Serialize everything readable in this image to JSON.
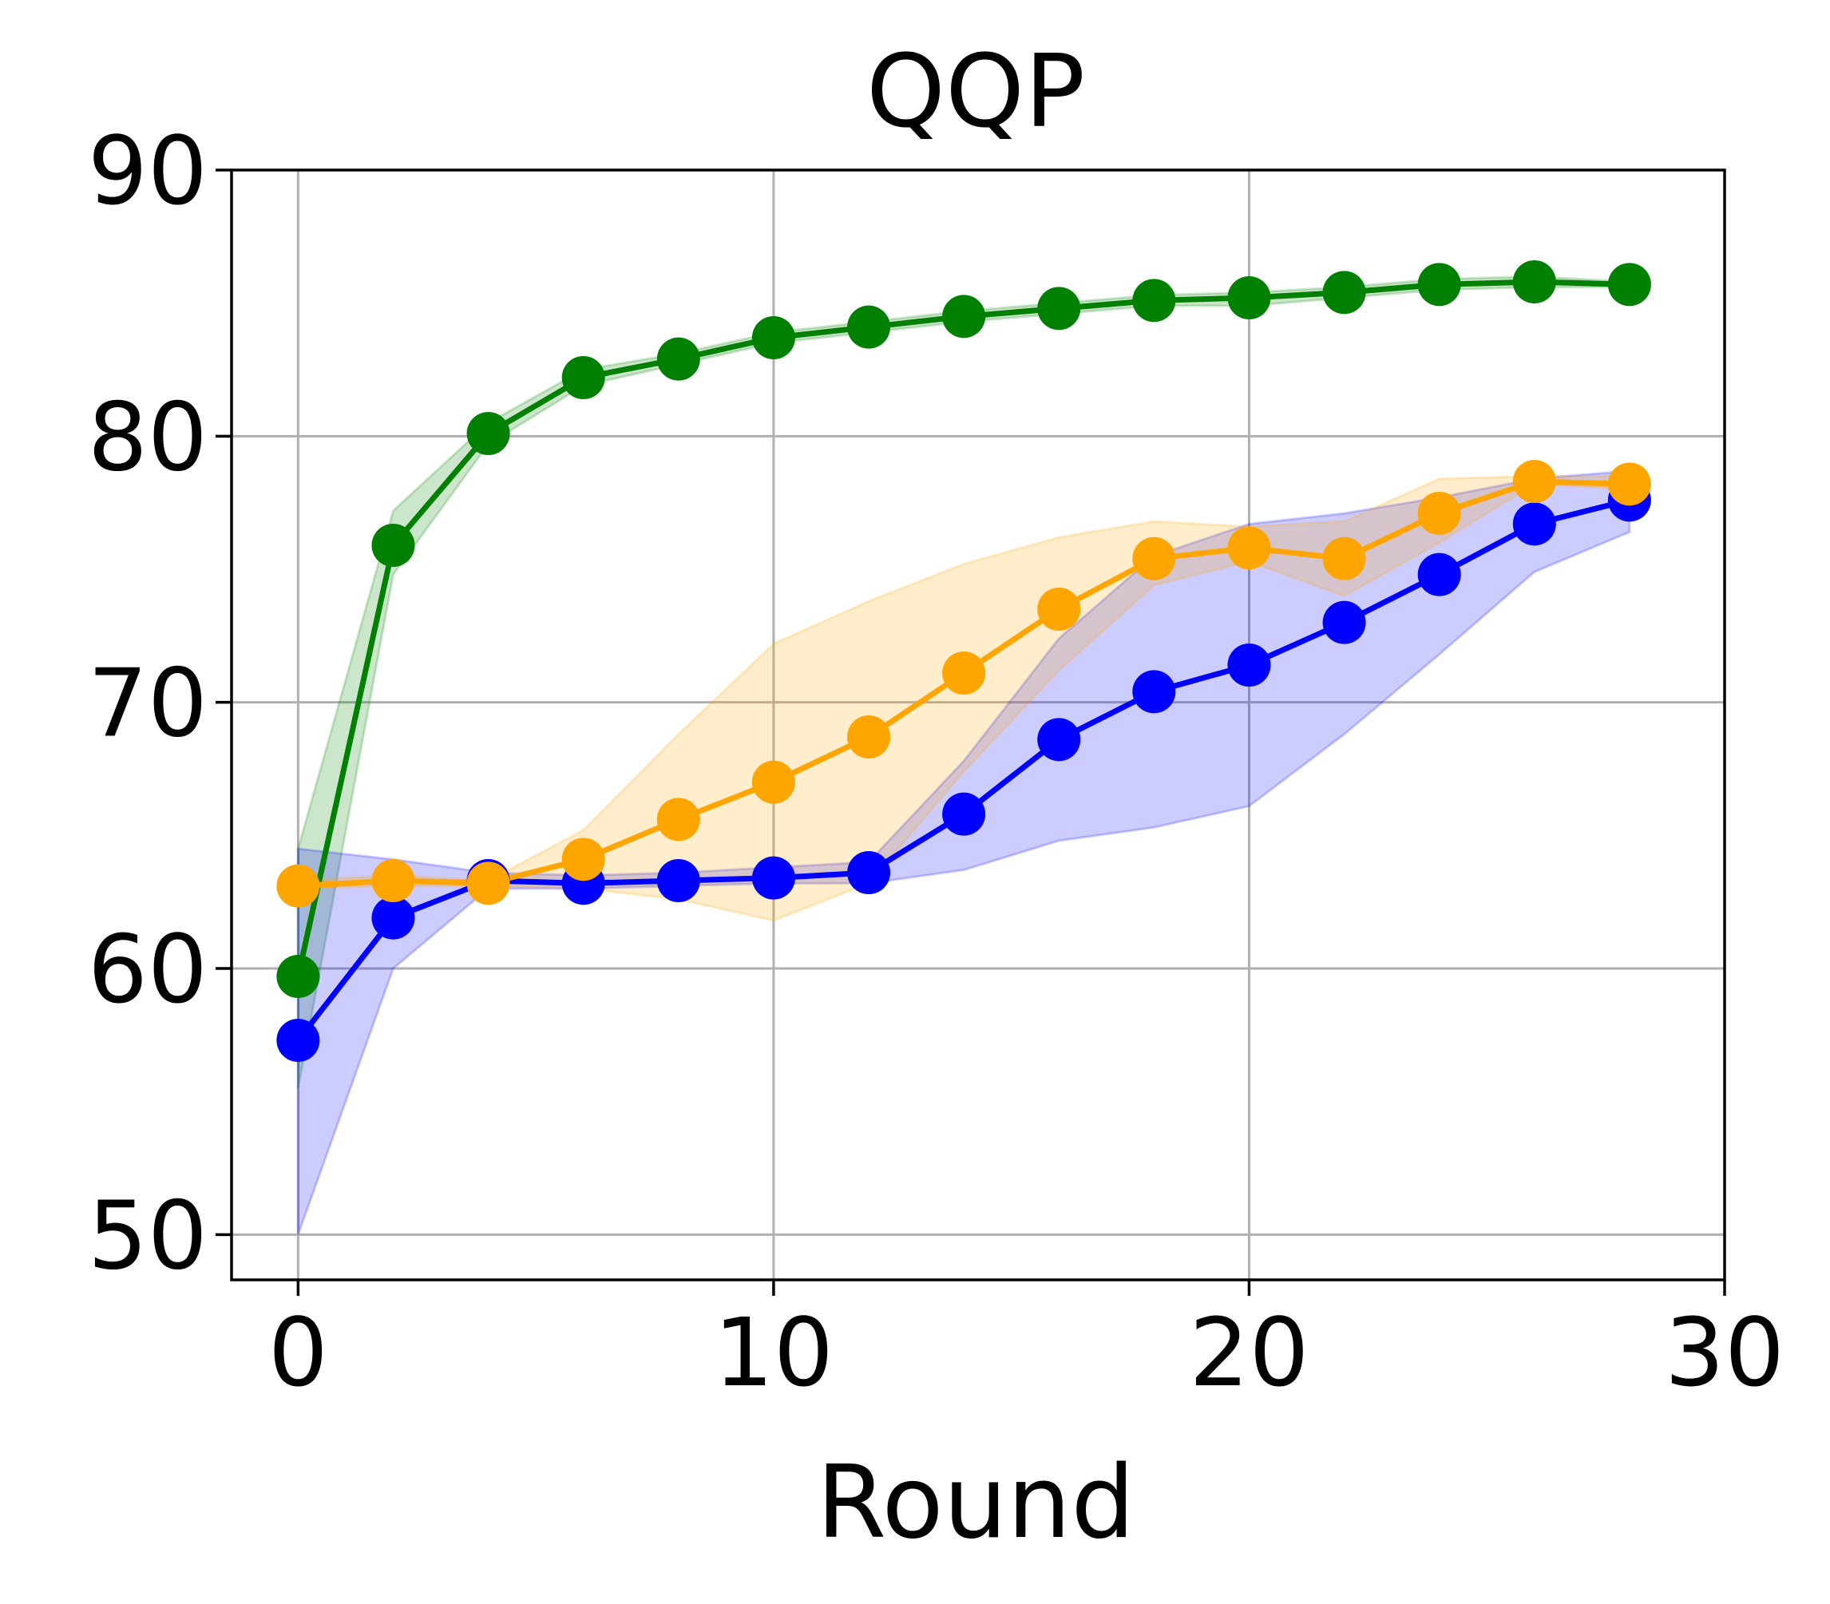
{
  "chart_data": {
    "type": "line",
    "title": "QQP",
    "xlabel": "Round",
    "ylabel": "",
    "xlim": [
      -1.4,
      30
    ],
    "ylim": [
      48.3,
      90
    ],
    "xticks": [
      0,
      10,
      20,
      30
    ],
    "yticks": [
      50,
      60,
      70,
      80,
      90
    ],
    "grid": true,
    "legend": "none",
    "x": [
      0,
      2,
      4,
      6,
      8,
      10,
      12,
      14,
      16,
      18,
      20,
      22,
      24,
      26,
      28
    ],
    "series": [
      {
        "color": "#008000",
        "values": [
          59.7,
          75.9,
          80.1,
          82.2,
          82.9,
          83.7,
          84.1,
          84.5,
          84.8,
          85.1,
          85.2,
          85.4,
          85.7,
          85.8,
          85.7
        ],
        "lower": [
          55.5,
          74.8,
          79.7,
          81.9,
          82.7,
          83.5,
          83.9,
          84.3,
          84.6,
          84.9,
          84.9,
          85.2,
          85.5,
          85.6,
          85.6
        ],
        "upper": [
          64.5,
          77.2,
          80.5,
          82.5,
          83.1,
          83.9,
          84.3,
          84.7,
          85.0,
          85.3,
          85.4,
          85.6,
          85.9,
          86.0,
          85.8
        ]
      },
      {
        "color": "#0000ff",
        "values": [
          57.3,
          61.9,
          63.3,
          63.2,
          63.3,
          63.4,
          63.6,
          65.8,
          68.6,
          70.4,
          71.4,
          73.0,
          74.8,
          76.7,
          77.6
        ],
        "lower": [
          50.0,
          60.0,
          63.0,
          63.0,
          63.1,
          63.2,
          63.2,
          63.7,
          64.8,
          65.3,
          66.1,
          68.8,
          71.8,
          74.9,
          76.4
        ],
        "upper": [
          64.5,
          64.1,
          63.6,
          63.5,
          63.6,
          63.8,
          64.0,
          67.8,
          72.4,
          75.5,
          76.7,
          77.1,
          77.7,
          78.4,
          78.7
        ]
      },
      {
        "color": "#ffa500",
        "values": [
          63.1,
          63.3,
          63.2,
          64.1,
          65.6,
          67.0,
          68.7,
          71.1,
          73.5,
          75.4,
          75.8,
          75.4,
          77.1,
          78.3,
          78.2
        ],
        "lower": [
          63.0,
          63.1,
          63.1,
          63.0,
          62.6,
          61.8,
          63.2,
          67.4,
          71.2,
          74.4,
          75.3,
          74.0,
          76.0,
          78.2,
          78.0
        ],
        "upper": [
          63.3,
          63.5,
          63.3,
          65.2,
          68.8,
          72.2,
          73.8,
          75.2,
          76.2,
          76.8,
          76.6,
          76.8,
          78.4,
          78.5,
          78.5
        ]
      }
    ]
  }
}
